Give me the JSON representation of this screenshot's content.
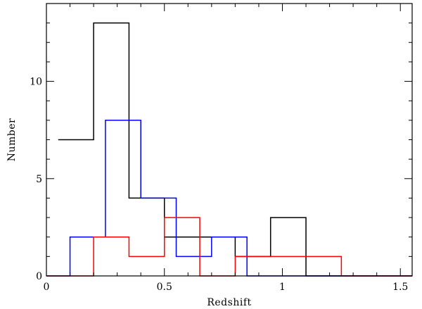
{
  "chart_data": {
    "type": "histogram",
    "title": "",
    "xlabel": "Redshift",
    "ylabel": "Number",
    "xlim": [
      0,
      1.55
    ],
    "ylim": [
      0,
      14
    ],
    "grid": false,
    "x_major_ticks": [
      {
        "value": 0,
        "label": "0"
      },
      {
        "value": 0.5,
        "label": "0.5"
      },
      {
        "value": 1,
        "label": "1"
      },
      {
        "value": 1.5,
        "label": "1.5"
      }
    ],
    "x_minor_step": 0.1,
    "y_major_ticks": [
      {
        "value": 0,
        "label": "0"
      },
      {
        "value": 5,
        "label": "5"
      },
      {
        "value": 10,
        "label": "10"
      }
    ],
    "y_minor_step": 1,
    "series": [
      {
        "color": "#000000",
        "bins": [
          {
            "x0": 0.05,
            "x1": 0.2,
            "y": 7
          },
          {
            "x0": 0.2,
            "x1": 0.35,
            "y": 13
          },
          {
            "x0": 0.35,
            "x1": 0.5,
            "y": 4
          },
          {
            "x0": 0.5,
            "x1": 0.8,
            "y": 2
          },
          {
            "x0": 0.8,
            "x1": 0.95,
            "y": 1
          },
          {
            "x0": 0.95,
            "x1": 1.1,
            "y": 3
          },
          {
            "x0": 1.1,
            "x1": 1.55,
            "y": 0
          }
        ]
      },
      {
        "color": "#0000ff",
        "bins": [
          {
            "x0": 0,
            "x1": 0.1,
            "y": 0
          },
          {
            "x0": 0.1,
            "x1": 0.25,
            "y": 2
          },
          {
            "x0": 0.25,
            "x1": 0.4,
            "y": 8
          },
          {
            "x0": 0.4,
            "x1": 0.55,
            "y": 4
          },
          {
            "x0": 0.55,
            "x1": 0.7,
            "y": 1
          },
          {
            "x0": 0.7,
            "x1": 0.85,
            "y": 2
          },
          {
            "x0": 0.85,
            "x1": 1.55,
            "y": 0
          }
        ]
      },
      {
        "color": "#ff0000",
        "bins": [
          {
            "x0": 0,
            "x1": 0.2,
            "y": 0
          },
          {
            "x0": 0.2,
            "x1": 0.35,
            "y": 2
          },
          {
            "x0": 0.35,
            "x1": 0.5,
            "y": 1
          },
          {
            "x0": 0.5,
            "x1": 0.65,
            "y": 3
          },
          {
            "x0": 0.65,
            "x1": 0.8,
            "y": 0
          },
          {
            "x0": 0.8,
            "x1": 1.25,
            "y": 1
          },
          {
            "x0": 1.25,
            "x1": 1.55,
            "y": 0
          }
        ]
      }
    ]
  }
}
